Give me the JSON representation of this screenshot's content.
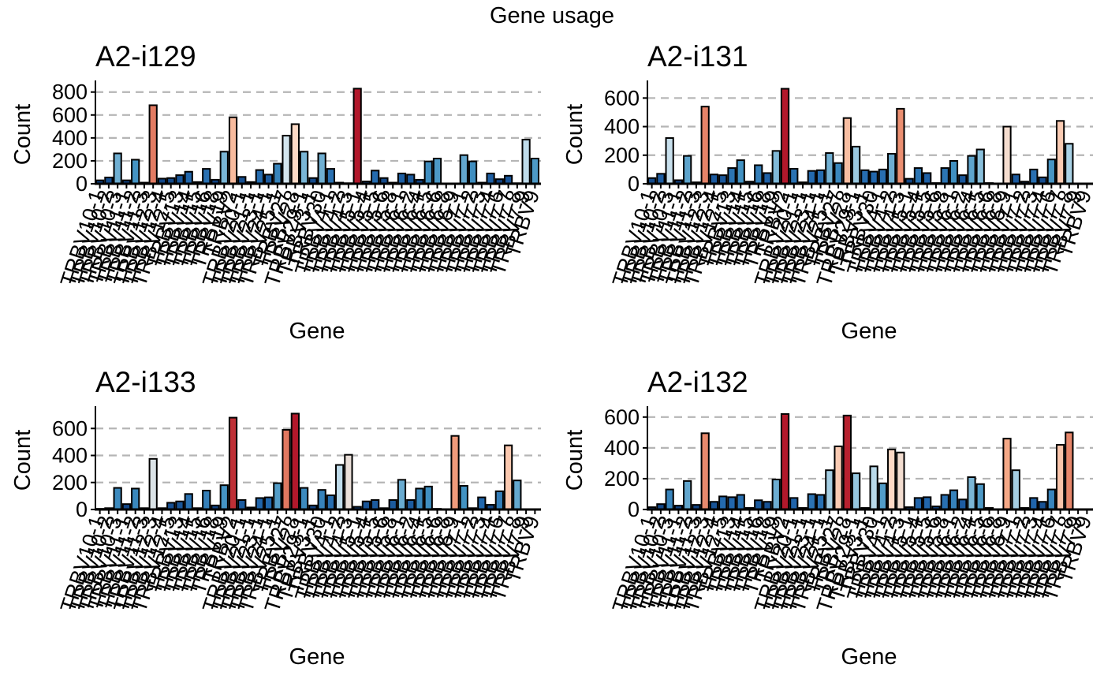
{
  "figure": {
    "title": "Gene usage"
  },
  "colors": {
    "palette": [
      "#08306b",
      "#2166ac",
      "#4393c3",
      "#92c5de",
      "#d1e5f0",
      "#fddbc7",
      "#f4a582",
      "#d6604d",
      "#b2182b"
    ],
    "grid": "#b5b5b5",
    "bar_outline": "#000000"
  },
  "chart_data": [
    {
      "type": "bar",
      "title": "A2-i129",
      "xlabel": "Gene",
      "ylabel": "Count",
      "ylim": [
        0,
        860
      ],
      "yticks": [
        0,
        200,
        400,
        600,
        800
      ],
      "grid": "horizontal dashed",
      "color_scale": "count (blue = low, red = high)",
      "categories": [
        "TRBV10-1",
        "TRBV10-2",
        "TRBV10-3",
        "TRBV11-1",
        "TRBV11-2",
        "TRBV11-3",
        "TRBV12-3",
        "TRBV12-4",
        "TRBV12-5",
        "TRBV13",
        "TRBV14",
        "TRBV15",
        "TRBV16",
        "TRBV18",
        "TRBV19",
        "TRBV2",
        "TRBV20-1",
        "TRBV21-1",
        "TRBV23-1",
        "TRBV24-1",
        "TRBV25-1",
        "TRBV27",
        "TRBV28",
        "TRBV29-1",
        "TRBV3-1",
        "TRBV30",
        "TRBV4-1",
        "TRBV4-2",
        "TRBV4-3",
        "TRBV5-1",
        "TRBV5-4",
        "TRBV5-5",
        "TRBV5-6",
        "TRBV5-8",
        "TRBV6-1",
        "TRBV6-2",
        "TRBV6-4",
        "TRBV6-5",
        "TRBV6-6",
        "TRBV6-8",
        "TRBV6-9",
        "TRBV7-1",
        "TRBV7-2",
        "TRBV7-3",
        "TRBV7-4",
        "TRBV7-6",
        "TRBV7-7",
        "TRBV7-8",
        "TRBV7-9",
        "TRBV9"
      ],
      "values": [
        30,
        55,
        265,
        30,
        210,
        10,
        685,
        45,
        50,
        75,
        105,
        15,
        130,
        35,
        280,
        580,
        60,
        15,
        120,
        80,
        175,
        420,
        520,
        280,
        50,
        265,
        130,
        10,
        5,
        830,
        20,
        115,
        50,
        10,
        90,
        80,
        35,
        195,
        220,
        0,
        0,
        250,
        195,
        10,
        90,
        40,
        70,
        5,
        385,
        220
      ]
    },
    {
      "type": "bar",
      "title": "A2-i131",
      "xlabel": "Gene",
      "ylabel": "Count",
      "ylim": [
        0,
        690
      ],
      "yticks": [
        0,
        200,
        400,
        600
      ],
      "grid": "horizontal dashed",
      "color_scale": "count (blue = low, red = high)",
      "categories": [
        "TRBV10-1",
        "TRBV10-2",
        "TRBV10-3",
        "TRBV11-1",
        "TRBV11-2",
        "TRBV11-3",
        "TRBV12-3",
        "TRBV12-4",
        "TRBV12-5",
        "TRBV13",
        "TRBV14",
        "TRBV15",
        "TRBV16",
        "TRBV18",
        "TRBV19",
        "TRBV2",
        "TRBV20-1",
        "TRBV21-1",
        "TRBV23-1",
        "TRBV24-1",
        "TRBV25-1",
        "TRBV27",
        "TRBV28",
        "TRBV29-1",
        "TRBV3-1",
        "TRBV30",
        "TRBV4-1",
        "TRBV4-2",
        "TRBV4-3",
        "TRBV5-1",
        "TRBV5-4",
        "TRBV5-5",
        "TRBV5-6",
        "TRBV5-8",
        "TRBV6-1",
        "TRBV6-2",
        "TRBV6-4",
        "TRBV6-5",
        "TRBV6-6",
        "TRBV6-8",
        "TRBV6-9",
        "TRBV7-1",
        "TRBV7-2",
        "TRBV7-3",
        "TRBV7-4",
        "TRBV7-6",
        "TRBV7-7",
        "TRBV7-8",
        "TRBV7-9",
        "TRBV9"
      ],
      "values": [
        40,
        70,
        320,
        25,
        195,
        10,
        540,
        65,
        60,
        110,
        165,
        15,
        130,
        75,
        230,
        665,
        105,
        10,
        90,
        95,
        215,
        145,
        460,
        260,
        95,
        85,
        100,
        210,
        525,
        35,
        110,
        75,
        5,
        110,
        160,
        60,
        195,
        240,
        5,
        0,
        400,
        65,
        15,
        100,
        45,
        170,
        440,
        280,
        0,
        0
      ]
    },
    {
      "type": "bar",
      "title": "A2-i133",
      "xlabel": "Gene",
      "ylabel": "Count",
      "ylim": [
        0,
        730
      ],
      "yticks": [
        0,
        200,
        400,
        600
      ],
      "grid": "horizontal dashed",
      "color_scale": "count (blue = low, red = high)",
      "categories": [
        "TRBV10-1",
        "TRBV10-2",
        "TRBV10-3",
        "TRBV11-1",
        "TRBV11-2",
        "TRBV11-3",
        "TRBV12-3",
        "TRBV12-4",
        "TRBV12-5",
        "TRBV13",
        "TRBV14",
        "TRBV15",
        "TRBV16",
        "TRBV18",
        "TRBV19",
        "TRBV2",
        "TRBV20-1",
        "TRBV21-1",
        "TRBV23-1",
        "TRBV24-1",
        "TRBV25-1",
        "TRBV27",
        "TRBV28",
        "TRBV29-1",
        "TRBV3-1",
        "TRBV30",
        "TRBV4-1",
        "TRBV4-2",
        "TRBV4-3",
        "TRBV5-1",
        "TRBV5-4",
        "TRBV5-5",
        "TRBV5-6",
        "TRBV5-8",
        "TRBV6-1",
        "TRBV6-2",
        "TRBV6-4",
        "TRBV6-5",
        "TRBV6-6",
        "TRBV6-8",
        "TRBV6-9",
        "TRBV7-1",
        "TRBV7-2",
        "TRBV7-3",
        "TRBV7-4",
        "TRBV7-6",
        "TRBV7-7",
        "TRBV7-8",
        "TRBV7-9",
        "TRBV9"
      ],
      "values": [
        5,
        10,
        160,
        40,
        155,
        10,
        375,
        10,
        50,
        60,
        115,
        10,
        140,
        30,
        180,
        680,
        70,
        15,
        85,
        90,
        195,
        590,
        710,
        160,
        30,
        145,
        105,
        330,
        405,
        20,
        60,
        70,
        10,
        70,
        220,
        70,
        155,
        170,
        5,
        0,
        545,
        175,
        10,
        90,
        35,
        135,
        475,
        215,
        0,
        0
      ]
    },
    {
      "type": "bar",
      "title": "A2-i132",
      "xlabel": "Gene",
      "ylabel": "Count",
      "ylim": [
        0,
        640
      ],
      "yticks": [
        0,
        200,
        400,
        600
      ],
      "grid": "horizontal dashed",
      "color_scale": "count (blue = low, red = high)",
      "categories": [
        "TRBV10-1",
        "TRBV10-2",
        "TRBV10-3",
        "TRBV11-1",
        "TRBV11-2",
        "TRBV11-3",
        "TRBV12-3",
        "TRBV12-4",
        "TRBV12-5",
        "TRBV13",
        "TRBV14",
        "TRBV15",
        "TRBV16",
        "TRBV18",
        "TRBV19",
        "TRBV2",
        "TRBV20-1",
        "TRBV21-1",
        "TRBV23-1",
        "TRBV24-1",
        "TRBV25-1",
        "TRBV27",
        "TRBV28",
        "TRBV29-1",
        "TRBV3-1",
        "TRBV30",
        "TRBV4-1",
        "TRBV4-2",
        "TRBV4-3",
        "TRBV5-1",
        "TRBV5-4",
        "TRBV5-5",
        "TRBV5-6",
        "TRBV5-8",
        "TRBV6-1",
        "TRBV6-2",
        "TRBV6-4",
        "TRBV6-5",
        "TRBV6-6",
        "TRBV6-8",
        "TRBV6-9",
        "TRBV7-1",
        "TRBV7-2",
        "TRBV7-3",
        "TRBV7-4",
        "TRBV7-6",
        "TRBV7-7",
        "TRBV7-8",
        "TRBV7-9",
        "TRBV9"
      ],
      "values": [
        15,
        35,
        130,
        25,
        185,
        30,
        495,
        50,
        85,
        80,
        95,
        10,
        60,
        50,
        195,
        620,
        75,
        10,
        100,
        95,
        255,
        410,
        610,
        235,
        10,
        280,
        170,
        390,
        370,
        15,
        75,
        80,
        20,
        95,
        125,
        65,
        210,
        165,
        10,
        0,
        460,
        255,
        10,
        75,
        50,
        130,
        420,
        500,
        0,
        0
      ]
    }
  ]
}
